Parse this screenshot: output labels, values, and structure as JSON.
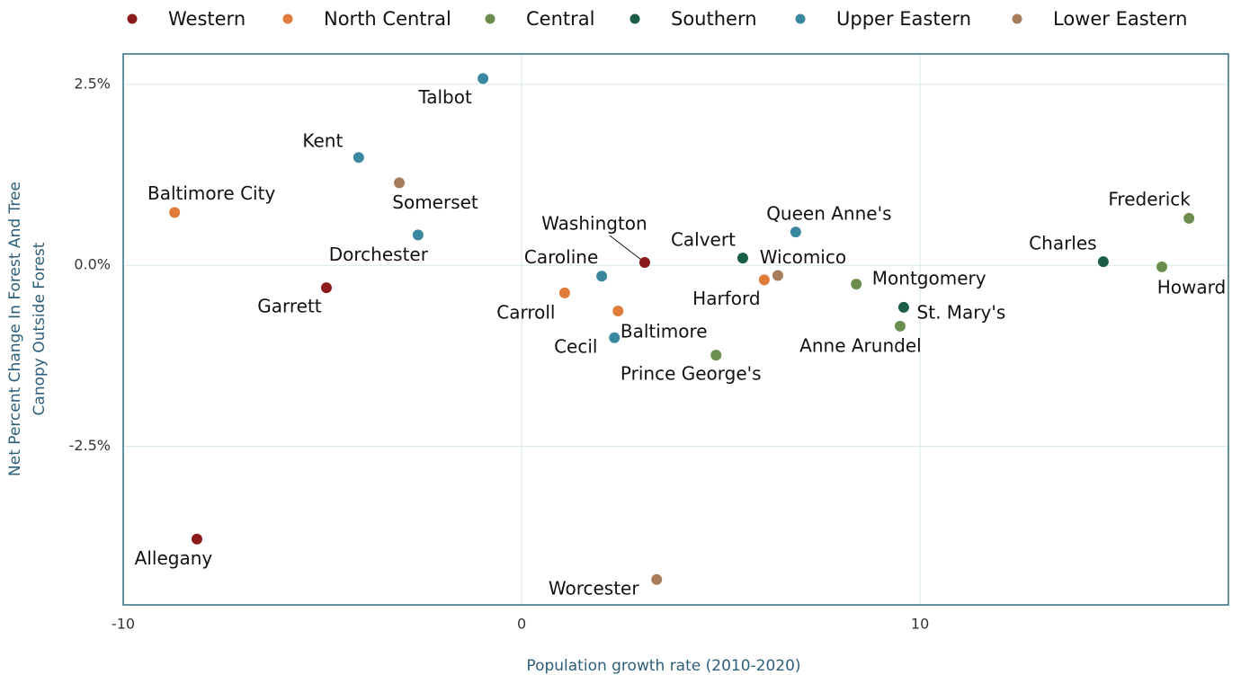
{
  "chart_data": {
    "type": "scatter",
    "x_label": "Population growth rate (2010-2020)",
    "y_label": [
      "Net Percent Change In Forest And Tree",
      "Canopy Outside Forest"
    ],
    "xlim": [
      -10,
      17.74
    ],
    "ylim": [
      -4.69,
      2.92
    ],
    "xticks": [
      -10,
      0,
      10
    ],
    "yticks": [
      {
        "value": 2.5,
        "label": "2.5%"
      },
      {
        "value": 0,
        "label": "0.0%"
      },
      {
        "value": -2.5,
        "label": "-2.5%"
      }
    ],
    "grid": true,
    "legend": "top",
    "series": [
      {
        "name": "Western",
        "color": "#8b1a1a",
        "labels": [
          "Garrett",
          "Allegany",
          "Washington"
        ],
        "x": [
          -4.9,
          -8.15,
          3.09
        ],
        "values": [
          -0.31,
          -3.78,
          0.04
        ]
      },
      {
        "name": "North Central",
        "color": "#e07b39",
        "labels": [
          "Baltimore City",
          "Carroll",
          "Baltimore",
          "Harford"
        ],
        "x": [
          -8.71,
          1.08,
          2.42,
          6.09
        ],
        "values": [
          0.73,
          -0.38,
          -0.63,
          -0.2
        ]
      },
      {
        "name": "Central",
        "color": "#6b8e4e",
        "labels": [
          "Prince George's",
          "Montgomery",
          "Anne Arundel",
          "Frederick",
          "Howard"
        ],
        "x": [
          4.88,
          8.4,
          9.5,
          16.75,
          16.07
        ],
        "values": [
          -1.24,
          -0.26,
          -0.84,
          0.65,
          -0.02
        ]
      },
      {
        "name": "Southern",
        "color": "#1a5e4a",
        "labels": [
          "Calvert",
          "St. Mary's",
          "Charles"
        ],
        "x": [
          5.55,
          9.59,
          14.6
        ],
        "values": [
          0.1,
          -0.58,
          0.05
        ]
      },
      {
        "name": "Upper  Eastern",
        "color": "#3a87a0",
        "labels": [
          "Talbot",
          "Kent",
          "Dorchester",
          "Caroline",
          "Cecil",
          "Queen Anne's"
        ],
        "x": [
          -0.97,
          -4.09,
          -2.6,
          2.01,
          2.33,
          6.88
        ],
        "values": [
          2.58,
          1.49,
          0.42,
          -0.15,
          -1.0,
          0.46
        ]
      },
      {
        "name": "Lower  Eastern",
        "color": "#a67c5b",
        "labels": [
          "Somerset",
          "Wicomico",
          "Worcester"
        ],
        "x": [
          -3.07,
          6.43,
          3.39
        ],
        "values": [
          1.14,
          -0.14,
          -4.34
        ]
      }
    ]
  }
}
